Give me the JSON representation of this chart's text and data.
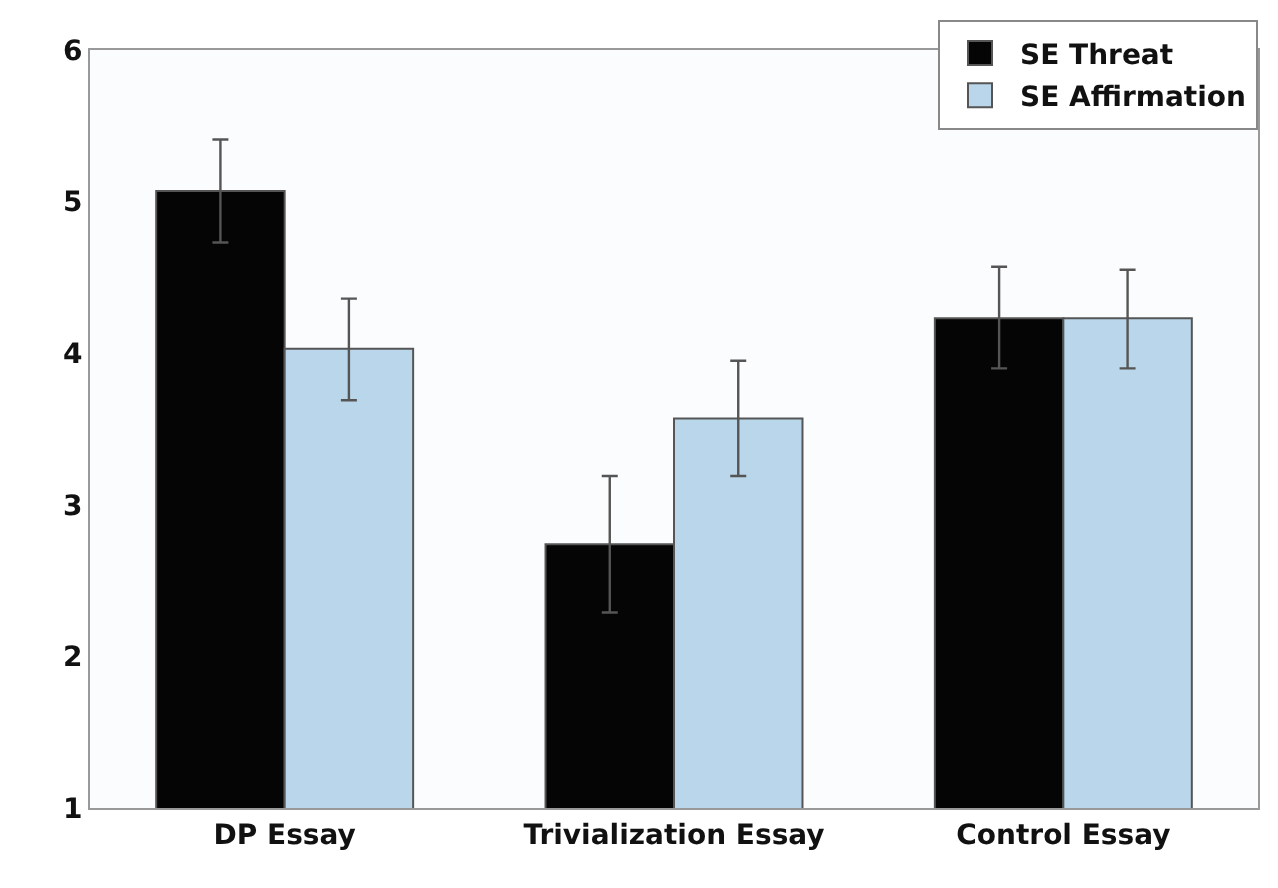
{
  "chart_data": {
    "type": "bar",
    "categories": [
      "DP Essay",
      "Trivialization Essay",
      "Control Essay"
    ],
    "series": [
      {
        "name": "SE Threat",
        "color": "#050505",
        "values": [
          5.07,
          2.74,
          4.23
        ],
        "errors": [
          [
            4.73,
            5.41
          ],
          [
            2.29,
            3.19
          ],
          [
            3.9,
            4.57
          ]
        ]
      },
      {
        "name": "SE Affirmation",
        "color": "#bad6ea",
        "values": [
          4.03,
          3.57,
          4.23
        ],
        "errors": [
          [
            3.69,
            4.36
          ],
          [
            3.19,
            3.95
          ],
          [
            3.9,
            4.55
          ]
        ]
      }
    ],
    "ylim": [
      1,
      6
    ],
    "yticks": [
      1,
      2,
      3,
      4,
      5,
      6
    ],
    "legend": "top right"
  }
}
